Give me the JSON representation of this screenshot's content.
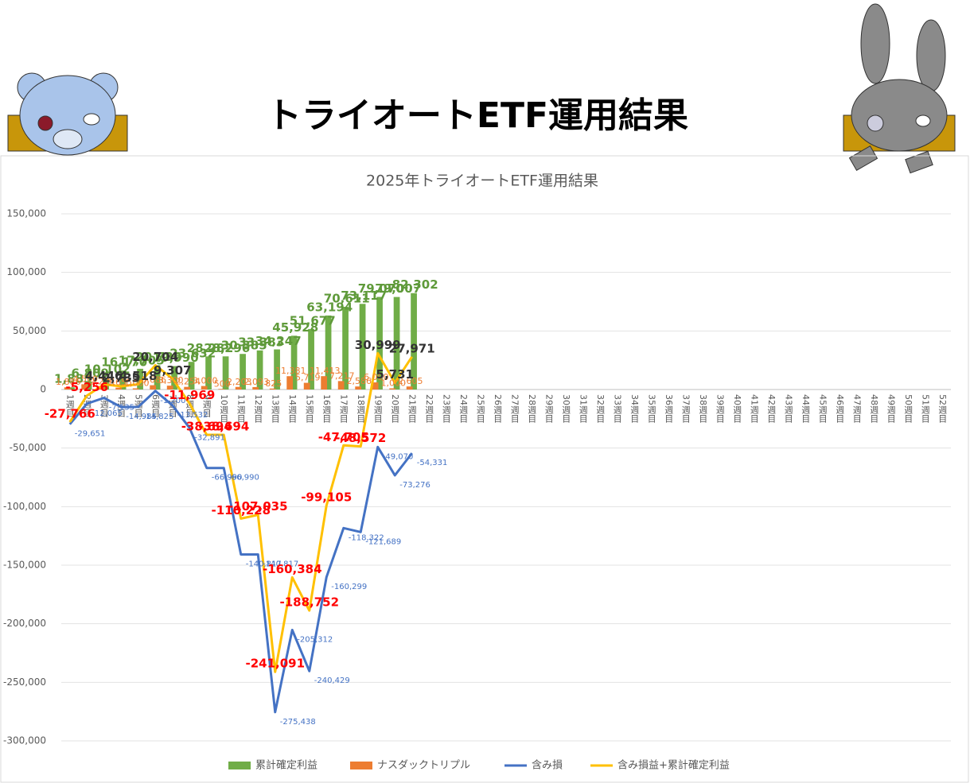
{
  "header": {
    "title": "トライオートETF運用結果"
  },
  "chart_data": {
    "type": "bar",
    "title": "2025年トライオートETF運用結果",
    "categories": [
      "1週目",
      "2週目",
      "3週目",
      "4週目",
      "5週目",
      "6週目",
      "7週目",
      "8週目",
      "9週目",
      "10週目",
      "11週目",
      "12週目",
      "13週目",
      "14週目",
      "15週目",
      "16週目",
      "17週目",
      "18週目",
      "19週目",
      "20週目",
      "21週目",
      "22週目",
      "23週目",
      "24週目",
      "25週目",
      "26週目",
      "27週目",
      "28週目",
      "29週目",
      "30週目",
      "31週目",
      "32週目",
      "33週目",
      "34週目",
      "35週目",
      "36週目",
      "37週目",
      "38週目",
      "39週目",
      "40週目",
      "41週目",
      "42週目",
      "43週目",
      "44週目",
      "45週目",
      "46週目",
      "47週目",
      "48週目",
      "49週目",
      "50週目",
      "51週目",
      "52週目"
    ],
    "ylim": [
      -300000,
      150000
    ],
    "yticks": [
      {
        "value": -300000,
        "label": "-300,000"
      },
      {
        "value": -250000,
        "label": "-250,000"
      },
      {
        "value": -200000,
        "label": "-200,000"
      },
      {
        "value": -150000,
        "label": "-150,000"
      },
      {
        "value": -100000,
        "label": "-100,000"
      },
      {
        "value": -50000,
        "label": "-50,000"
      },
      0,
      {
        "value": 50000,
        "label": "50,000"
      },
      {
        "value": 100000,
        "label": "100,000"
      },
      {
        "value": 150000,
        "label": "150,000"
      }
    ],
    "grid": true,
    "legend": "bottom",
    "series": [
      {
        "name": "累計確定利益",
        "type": "bar",
        "color": "#70ad47",
        "label_color": "#5f9a3a",
        "values": [
          1885,
          6809,
          10102,
          16170,
          17705,
          20736,
          19990,
          23632,
          28282,
          28296,
          30385,
          33383,
          34247,
          45928,
          51677,
          63194,
          70611,
          73117,
          79070,
          79007,
          82302,
          null,
          null,
          null,
          null,
          null,
          null,
          null,
          null,
          null,
          null,
          null,
          null,
          null,
          null,
          null,
          null,
          null,
          null,
          null,
          null,
          null,
          null,
          null,
          null,
          null,
          null,
          null,
          null,
          null,
          null,
          null
        ],
        "value_labels": [
          "1,885",
          "6,809",
          "10,102",
          "16,170",
          "17,705",
          "20,736",
          "19,990",
          "23,632",
          "28,282",
          "28,296",
          "30,385",
          "33,383",
          "34,247",
          "45,928",
          "51,677",
          "63,194",
          "70,611",
          "73,117",
          "79,070",
          "79,007",
          "82,302",
          null,
          null,
          null,
          null,
          null,
          null,
          null,
          null,
          null,
          null,
          null,
          null,
          null,
          null,
          null,
          null,
          null,
          null,
          null,
          null,
          null,
          null,
          null,
          null,
          null,
          null,
          null,
          null,
          null,
          null,
          null
        ]
      },
      {
        "name": "ナスダックトリプル",
        "type": "bar",
        "color": "#ed7d31",
        "label_color": "#ed7d31",
        "values": [
          1886,
          4500,
          2274,
          1655,
          1000,
          3686,
          3300,
          2254,
          3000,
          500,
          2203,
          2093,
          825,
          11381,
          5719,
          11413,
          7217,
          2586,
          6090,
          1000,
          2605,
          null,
          null,
          null,
          null,
          null,
          null,
          null,
          null,
          null,
          null,
          null,
          null,
          null,
          null,
          null,
          null,
          null,
          null,
          null,
          null,
          null,
          null,
          null,
          null,
          null,
          null,
          null,
          null,
          null,
          null,
          null
        ],
        "value_labels": [
          "1,886",
          "4,500",
          "2,274",
          "1,655",
          "1,000",
          "3,686",
          "3,300",
          "2,254",
          "3,000",
          "500",
          "2,203",
          "2,093",
          "825",
          "11,381",
          "5,719",
          "11,413",
          "7,217",
          "2,586",
          "6,090",
          "1,000",
          "2,605",
          null,
          null,
          null,
          null,
          null,
          null,
          null,
          null,
          null,
          null,
          null,
          null,
          null,
          null,
          null,
          null,
          null,
          null,
          null,
          null,
          null,
          null,
          null,
          null,
          null,
          null,
          null,
          null,
          null,
          null,
          null
        ]
      },
      {
        "name": "含み損",
        "type": "line",
        "color": "#4472c4",
        "label_color": "#4472c4",
        "values": [
          -29651,
          -12065,
          -7135,
          -14985,
          -14825,
          -1200,
          -13532,
          -32891,
          -66990,
          -66990,
          -140817,
          -140817,
          -275438,
          -205312,
          -240429,
          -160299,
          -118322,
          -121689,
          -49070,
          -73276,
          -54331,
          null,
          null,
          null,
          null,
          null,
          null,
          null,
          null,
          null,
          null,
          null,
          null,
          null,
          null,
          null,
          null,
          null,
          null,
          null,
          null,
          null,
          null,
          null,
          null,
          null,
          null,
          null,
          null,
          null,
          null,
          null
        ],
        "value_labels": [
          "-29,651",
          "-12,065",
          "-7,135",
          "-14,985",
          "-14,825",
          "-1,200",
          "-13,532",
          "-32,891",
          "-66,990",
          "-66,990",
          "-140,817",
          "-140,817",
          "-275,438",
          "-205,312",
          "-240,429",
          "-160,299",
          "-118,322",
          "-121,689",
          "-49,070",
          "-73,276",
          "-54,331",
          null,
          null,
          null,
          null,
          null,
          null,
          null,
          null,
          null,
          null,
          null,
          null,
          null,
          null,
          null,
          null,
          null,
          null,
          null,
          null,
          null,
          null,
          null,
          null,
          null,
          null,
          null,
          null,
          null,
          null,
          null
        ]
      },
      {
        "name": "含み損益+累計確定利益",
        "type": "line",
        "color": "#ffc000",
        "label_color": "#ff0000",
        "positive_label_color": "#333333",
        "values": [
          -27766,
          -5256,
          4446,
          2735,
          4518,
          20704,
          9307,
          -11969,
          -38694,
          -38694,
          -110228,
          -107035,
          -241091,
          -160384,
          -188752,
          -99105,
          -47705,
          -48572,
          30999,
          5731,
          27971,
          null,
          null,
          null,
          null,
          null,
          null,
          null,
          null,
          null,
          null,
          null,
          null,
          null,
          null,
          null,
          null,
          null,
          null,
          null,
          null,
          null,
          null,
          null,
          null,
          null,
          null,
          null,
          null,
          null,
          null,
          null
        ],
        "value_labels": [
          "-27,766",
          "-5,256",
          "4,446",
          "2,735",
          "4,518",
          "20,704",
          "9,307",
          "-11,969",
          "-38,694",
          "-38,694",
          "-110,228",
          "-107,035",
          "-241,091",
          "-160,384",
          "-188,752",
          "-99,105",
          "-47,705",
          "-48,572",
          "30,999",
          "5,731",
          "27,971",
          null,
          null,
          null,
          null,
          null,
          null,
          null,
          null,
          null,
          null,
          null,
          null,
          null,
          null,
          null,
          null,
          null,
          null,
          null,
          null,
          null,
          null,
          null,
          null,
          null,
          null,
          null,
          null,
          null,
          null,
          null
        ]
      }
    ]
  }
}
